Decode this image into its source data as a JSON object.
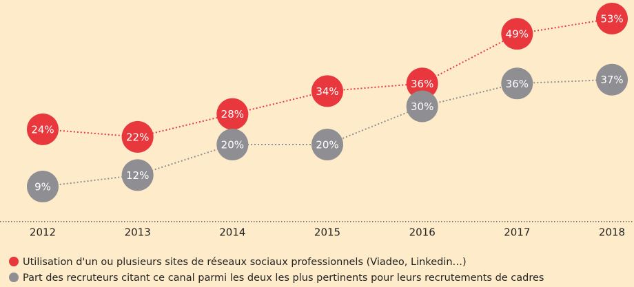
{
  "chart_data": {
    "type": "line",
    "categories": [
      "2012",
      "2013",
      "2014",
      "2015",
      "2016",
      "2017",
      "2018"
    ],
    "series": [
      {
        "name": "Utilisation d'un ou plusieurs sites de réseaux sociaux professionnels (Viadeo, Linkedin…)",
        "color": "#e8383d",
        "values": [
          24,
          22,
          28,
          34,
          36,
          49,
          53
        ],
        "value_labels": [
          "24%",
          "22%",
          "28%",
          "34%",
          "36%",
          "49%",
          "53%"
        ]
      },
      {
        "name": "Part des recruteurs citant ce canal parmi les deux les plus pertinents pour leurs recrutements de cadres",
        "color": "#8e8e93",
        "values": [
          9,
          12,
          20,
          20,
          30,
          36,
          37
        ],
        "value_labels": [
          "9%",
          "12%",
          "20%",
          "20%",
          "30%",
          "36%",
          "37%"
        ]
      }
    ]
  }
}
